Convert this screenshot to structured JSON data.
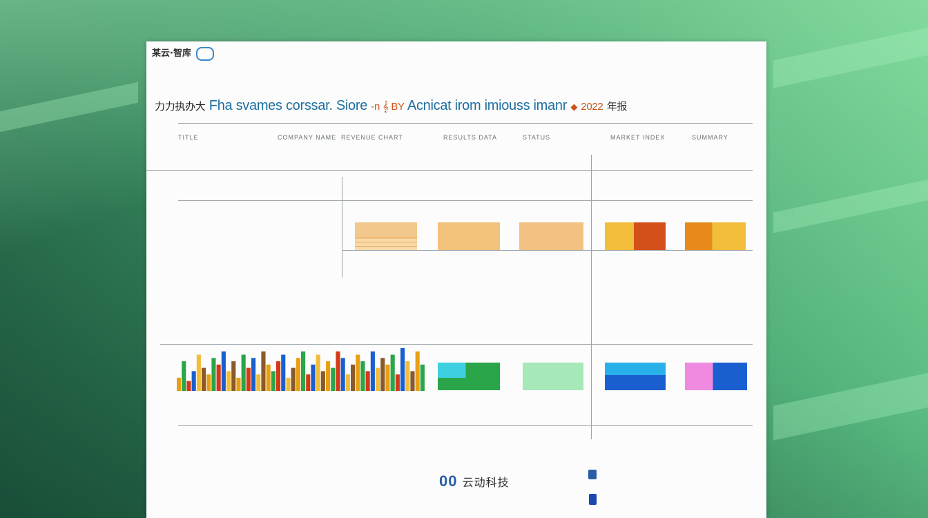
{
  "header": {
    "logo_text": "某云·智库",
    "title_prefix": "力力执办大",
    "title_main": "Fha svames corssar. Siore",
    "title_mid": "-n 𝄞 BY",
    "title_rest": "Acnicat irom imiouss imanr",
    "title_num": "2022",
    "title_suffix": "年报"
  },
  "columns": [
    "TITLE",
    "COMPANY NAME",
    "REVENUE CHART",
    "RESULTS DATA",
    "STATUS",
    "MARKET INDEX",
    "SUMMARY"
  ],
  "footer": {
    "logo_mark": "00",
    "logo_cjk": "云动科技"
  },
  "colors": {
    "orange_light": "#f2bf7a",
    "orange": "#e88a1a",
    "red_orange": "#d4501a",
    "yellow": "#f2bd3a",
    "green": "#2aa54a",
    "mint": "#a6e8b8",
    "cyan": "#3ed0e0",
    "blue": "#1a5fd0",
    "sky": "#2ab0e8",
    "pink": "#f08ae0"
  },
  "blocks_row1": [
    {
      "top": "#f2c88c",
      "bottom": "#ffffff",
      "stripes": "#e8a55a"
    },
    {
      "top": "#f3c27a",
      "bottom": "#f3c27a"
    },
    {
      "top": "#f2c080",
      "bottom": "#f2c080"
    },
    {
      "left": "#f2bd3a",
      "right": "#d4501a"
    },
    {
      "left": "#e88a1a",
      "right": "#f2bd3a"
    }
  ],
  "blocks_row2": [
    {
      "left": "#3ed0e0",
      "right": "#2aa54a"
    },
    {
      "color": "#a6e8b8"
    },
    {
      "top": "#2ab0e8",
      "bottom": "#1a5fd0"
    },
    {
      "left": "#f08ae0",
      "right": "#1a5fd0"
    }
  ],
  "chart_data": {
    "type": "bar",
    "values": [
      4,
      9,
      3,
      6,
      11,
      7,
      5,
      10,
      8,
      12,
      6,
      9,
      4,
      11,
      7,
      10,
      5,
      12,
      8,
      6,
      9,
      11,
      4,
      7,
      10,
      12,
      5,
      8,
      11,
      6,
      9,
      7,
      12,
      10,
      5,
      8,
      11,
      9,
      6,
      12,
      7,
      10,
      8,
      11,
      5,
      13,
      9,
      6,
      12,
      8
    ],
    "palette": [
      "#e8a013",
      "#2aa54a",
      "#d43a1a",
      "#1a5fd0",
      "#f2bd3a",
      "#8a5a2a"
    ]
  }
}
